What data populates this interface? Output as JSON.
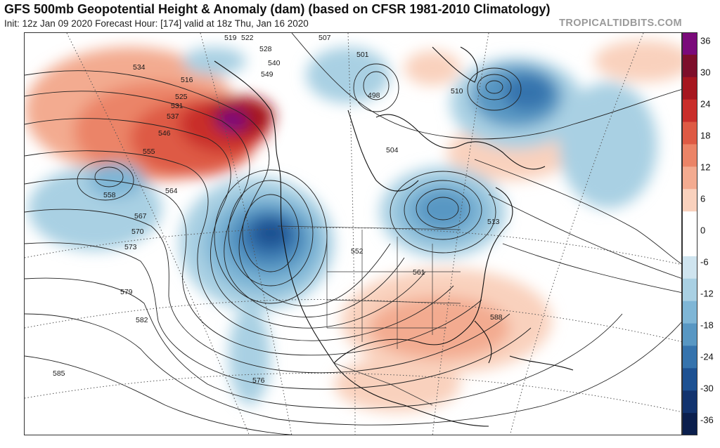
{
  "header": {
    "title": "GFS 500mb Geopotential Height & Anomaly (dam) (based on CFSR 1981-2010 Climatology)",
    "subtitle": "Init: 12z Jan 09 2020   Forecast Hour: [174]   valid at 18z Thu, Jan 16 2020",
    "brand": "TROPICALTIDBITS.COM"
  },
  "colorbar": {
    "labels": [
      "36",
      "30",
      "24",
      "18",
      "12",
      "6",
      "0",
      "-6",
      "-12",
      "-18",
      "-24",
      "-30",
      "-36"
    ],
    "bins": [
      {
        "color": "#7a0a7a"
      },
      {
        "color": "#7d0f2a"
      },
      {
        "color": "#a6171f"
      },
      {
        "color": "#c92e2a"
      },
      {
        "color": "#de5a44"
      },
      {
        "color": "#eb8467"
      },
      {
        "color": "#f3ab90"
      },
      {
        "color": "#f9d1bd"
      },
      {
        "color": "#ffffff"
      },
      {
        "color": "#ffffff"
      },
      {
        "color": "#cfe4ef"
      },
      {
        "color": "#a9d0e3"
      },
      {
        "color": "#7fb6d6"
      },
      {
        "color": "#5897c3"
      },
      {
        "color": "#3573ad"
      },
      {
        "color": "#1d5192"
      },
      {
        "color": "#12336e"
      },
      {
        "color": "#0b1f4d"
      }
    ]
  },
  "map": {
    "contour_labels": [
      {
        "text": "534"
      },
      {
        "text": "519"
      },
      {
        "text": "522"
      },
      {
        "text": "507"
      },
      {
        "text": "528"
      },
      {
        "text": "516"
      },
      {
        "text": "525"
      },
      {
        "text": "531"
      },
      {
        "text": "537"
      },
      {
        "text": "540"
      },
      {
        "text": "549"
      },
      {
        "text": "552"
      },
      {
        "text": "561"
      },
      {
        "text": "546"
      },
      {
        "text": "555"
      },
      {
        "text": "564"
      },
      {
        "text": "558"
      },
      {
        "text": "567"
      },
      {
        "text": "570"
      },
      {
        "text": "573"
      },
      {
        "text": "579"
      },
      {
        "text": "582"
      },
      {
        "text": "585"
      },
      {
        "text": "576"
      },
      {
        "text": "501"
      },
      {
        "text": "498"
      },
      {
        "text": "510"
      },
      {
        "text": "504"
      },
      {
        "text": "513"
      },
      {
        "text": "588"
      }
    ]
  }
}
